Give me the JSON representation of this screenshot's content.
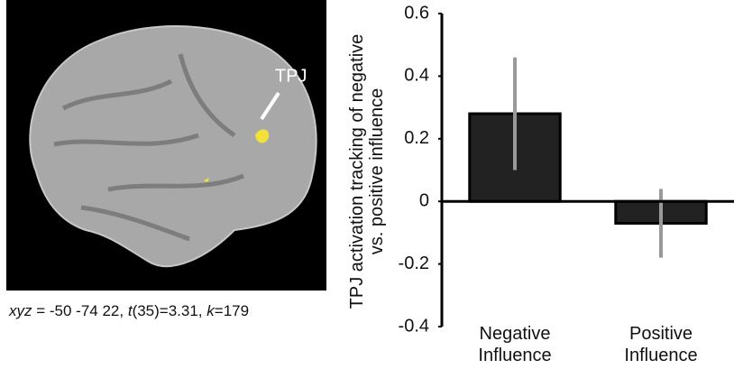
{
  "figure": {
    "brain_label": "TPJ",
    "caption": [
      "xyz",
      " = -50 -74 22, ",
      "t",
      "(35)=3.31, ",
      "k",
      "=179"
    ]
  },
  "chart_data": {
    "type": "bar",
    "y_label": "TPJ activation tracking of negative vs. positive influence",
    "categories": [
      "Negative Influence",
      "Positive Influence"
    ],
    "values": [
      0.28,
      -0.07
    ],
    "errors": [
      0.18,
      0.11
    ],
    "color": "#222222",
    "error_color": "#999999",
    "ylim": [
      -0.4,
      0.6
    ],
    "yticks": [
      -0.4,
      -0.2,
      0,
      0.2,
      0.4,
      0.6
    ]
  }
}
